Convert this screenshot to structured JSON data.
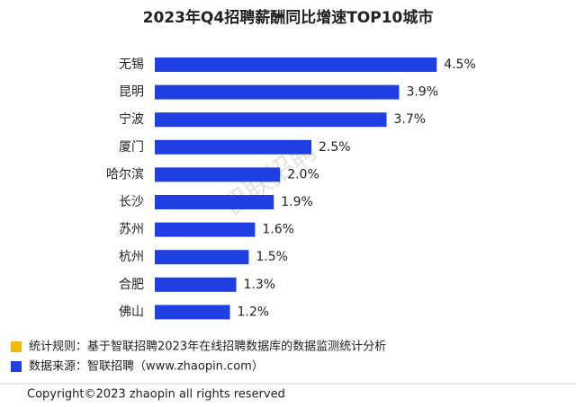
{
  "chart_data": {
    "type": "barh",
    "title": "2023年Q4招聘薪酬同比增速TOP10城市",
    "categories": [
      "无锡",
      "昆明",
      "宁波",
      "厦门",
      "哈尔滨",
      "长沙",
      "苏州",
      "杭州",
      "合肥",
      "佛山"
    ],
    "values": [
      4.5,
      3.9,
      3.7,
      2.5,
      2.0,
      1.9,
      1.6,
      1.5,
      1.3,
      1.2
    ],
    "value_labels": [
      "4.5%",
      "3.9%",
      "3.7%",
      "2.5%",
      "2.0%",
      "1.9%",
      "1.6%",
      "1.5%",
      "1.3%",
      "1.2%"
    ],
    "color": "#1f3fe3",
    "watermark": "智联招聘"
  },
  "notes": [
    {
      "color": "#f5b800",
      "text": "统计规则：基于智联招聘2023年在线招聘数据库的数据监测统计分析"
    },
    {
      "color": "#1f3fe3",
      "text": "数据来源：智联招聘（www.zhaopin.com）"
    }
  ],
  "footer": "Copyright©2023 zhaopin all rights reserved"
}
